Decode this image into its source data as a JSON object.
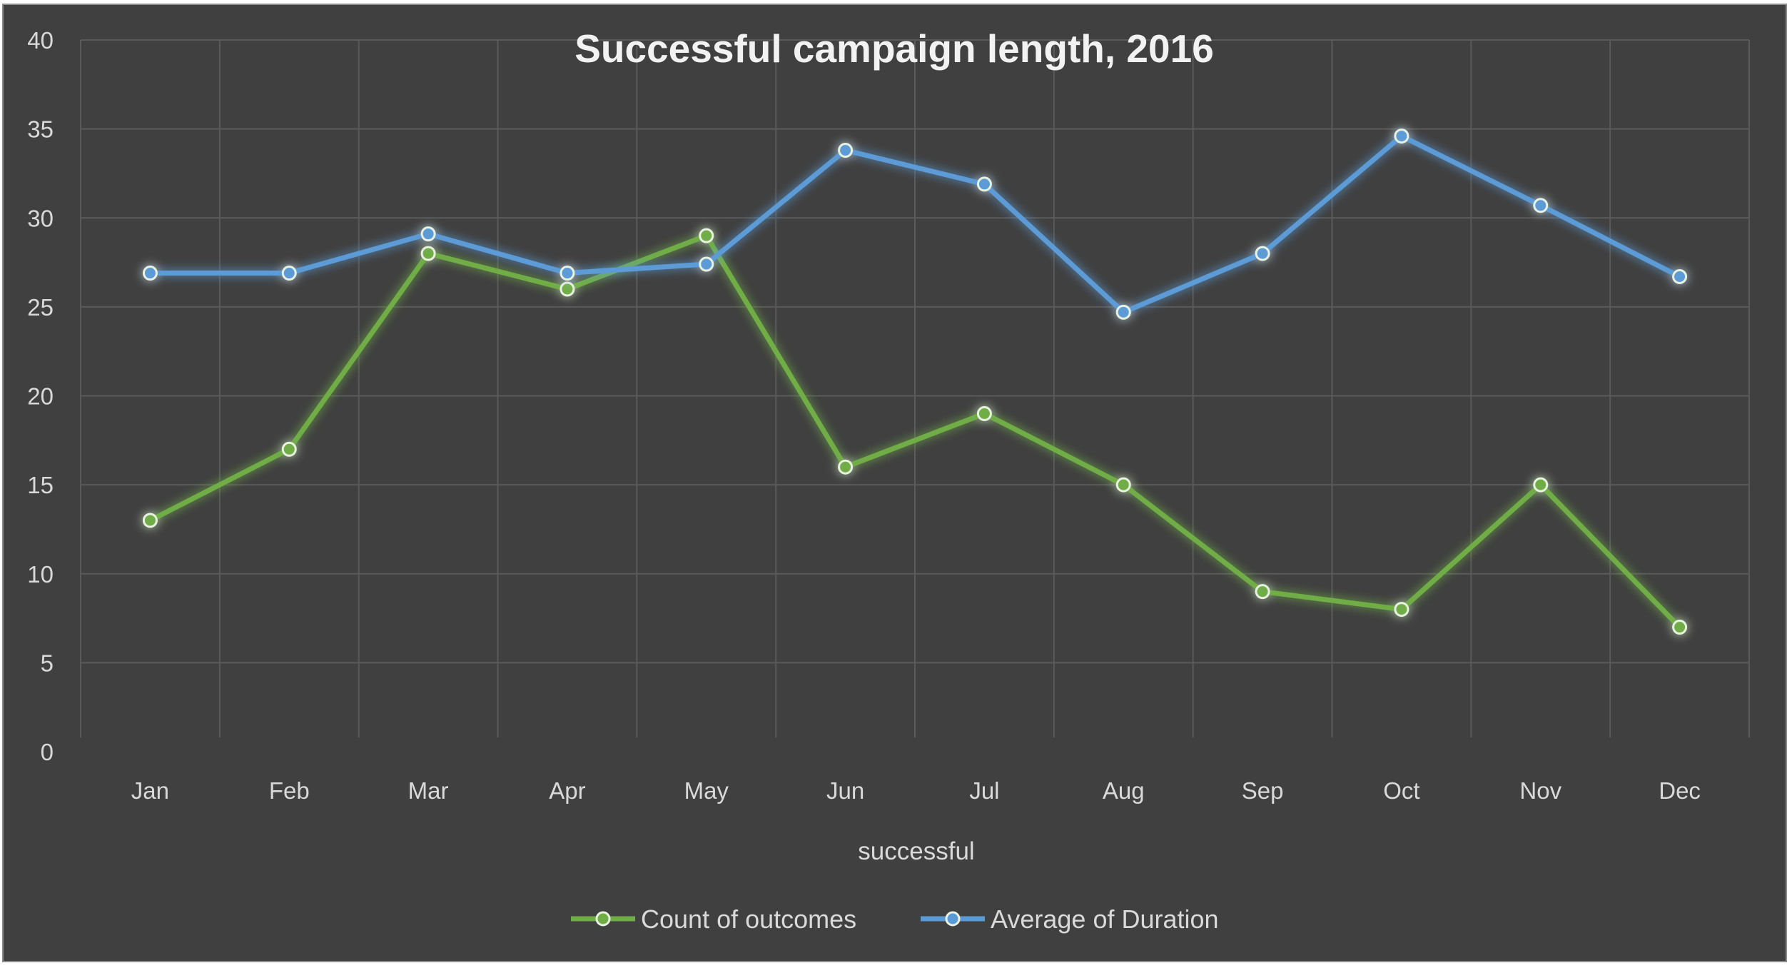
{
  "chart_data": {
    "type": "line",
    "title": "Successful campaign length, 2016",
    "xlabel": "successful",
    "ylabel": "",
    "categories": [
      "Jan",
      "Feb",
      "Mar",
      "Apr",
      "May",
      "Jun",
      "Jul",
      "Aug",
      "Sep",
      "Oct",
      "Nov",
      "Dec"
    ],
    "ylim": [
      0,
      40
    ],
    "yticks": [
      "0",
      "5",
      "10",
      "15",
      "20",
      "25",
      "30",
      "35",
      "40"
    ],
    "grid": true,
    "legend_position": "bottom",
    "series": [
      {
        "name": "Count of outcomes",
        "color": "#70ad47",
        "values": [
          13,
          17,
          28,
          26,
          29,
          16,
          19,
          15,
          9,
          8,
          15,
          7
        ]
      },
      {
        "name": "Average of Duration",
        "color": "#5b9bd5",
        "values": [
          26.9,
          26.9,
          29.1,
          26.9,
          27.4,
          33.8,
          31.9,
          24.7,
          28,
          34.6,
          30.7,
          26.7
        ]
      }
    ]
  }
}
